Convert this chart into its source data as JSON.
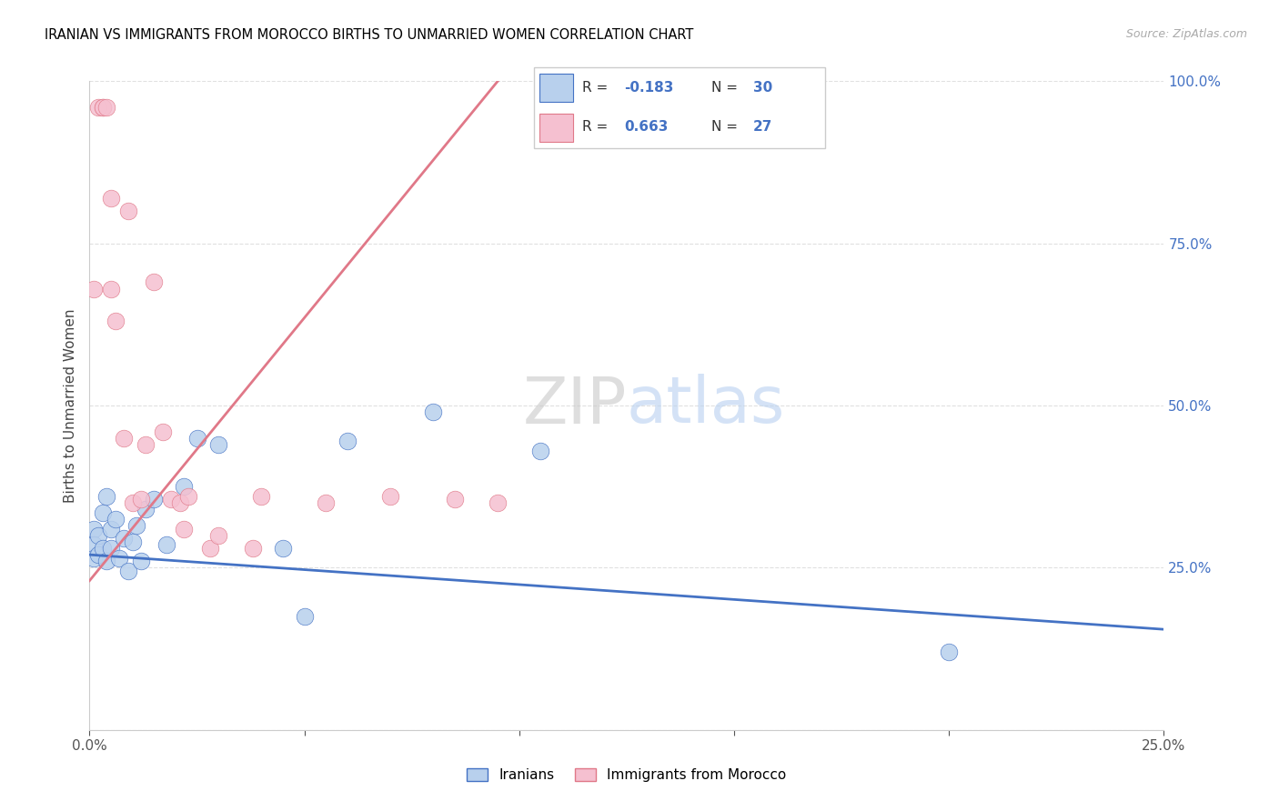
{
  "title": "IRANIAN VS IMMIGRANTS FROM MOROCCO BIRTHS TO UNMARRIED WOMEN CORRELATION CHART",
  "source": "Source: ZipAtlas.com",
  "ylabel": "Births to Unmarried Women",
  "xlim": [
    0.0,
    0.25
  ],
  "ylim": [
    0.0,
    1.0
  ],
  "blue_color": "#b8d0ed",
  "pink_color": "#f5c0d0",
  "trend_blue": "#4472c4",
  "trend_pink": "#e07888",
  "r_iranians": "-0.183",
  "n_iranians": "30",
  "r_morocco": "0.663",
  "n_morocco": "27",
  "legend_iranians": "Iranians",
  "legend_morocco": "Immigrants from Morocco",
  "iranians_x": [
    0.001,
    0.001,
    0.001,
    0.002,
    0.002,
    0.003,
    0.003,
    0.004,
    0.004,
    0.005,
    0.005,
    0.006,
    0.007,
    0.008,
    0.009,
    0.01,
    0.011,
    0.012,
    0.013,
    0.015,
    0.018,
    0.022,
    0.025,
    0.03,
    0.045,
    0.05,
    0.06,
    0.08,
    0.105,
    0.2
  ],
  "iranians_y": [
    0.31,
    0.285,
    0.265,
    0.3,
    0.27,
    0.28,
    0.335,
    0.26,
    0.36,
    0.31,
    0.28,
    0.325,
    0.265,
    0.295,
    0.245,
    0.29,
    0.315,
    0.26,
    0.34,
    0.355,
    0.285,
    0.375,
    0.45,
    0.44,
    0.28,
    0.175,
    0.445,
    0.49,
    0.43,
    0.12
  ],
  "morocco_x": [
    0.001,
    0.002,
    0.003,
    0.003,
    0.004,
    0.005,
    0.005,
    0.006,
    0.008,
    0.009,
    0.01,
    0.012,
    0.013,
    0.015,
    0.017,
    0.019,
    0.021,
    0.022,
    0.023,
    0.028,
    0.03,
    0.038,
    0.04,
    0.055,
    0.07,
    0.085,
    0.095
  ],
  "morocco_y": [
    0.68,
    0.96,
    0.96,
    0.96,
    0.96,
    0.82,
    0.68,
    0.63,
    0.45,
    0.8,
    0.35,
    0.355,
    0.44,
    0.69,
    0.46,
    0.355,
    0.35,
    0.31,
    0.36,
    0.28,
    0.3,
    0.28,
    0.36,
    0.35,
    0.36,
    0.355,
    0.35
  ],
  "blue_trend_x": [
    0.0,
    0.25
  ],
  "blue_trend_y": [
    0.27,
    0.155
  ],
  "pink_trend_x": [
    0.0,
    0.095
  ],
  "pink_trend_y": [
    0.23,
    1.0
  ]
}
